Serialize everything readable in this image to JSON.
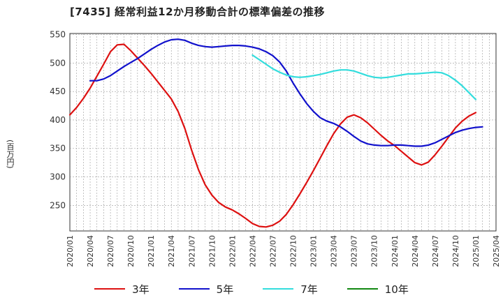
{
  "chart_data": {
    "type": "line",
    "title": "[7435]  経常利益12か月移動合計の標準偏差の推移",
    "ylabel": "(百万円)",
    "xlabel": "",
    "ylim": [
      205,
      552
    ],
    "yticks": [
      250,
      300,
      350,
      400,
      450,
      500,
      550
    ],
    "xtick_labels": [
      "2020/01",
      "2020/04",
      "2020/07",
      "2020/10",
      "2021/01",
      "2021/04",
      "2021/07",
      "2021/10",
      "2022/01",
      "2022/04",
      "2022/07",
      "2022/10",
      "2023/01",
      "2023/04",
      "2023/07",
      "2023/10",
      "2024/01",
      "2024/04",
      "2024/07",
      "2024/10",
      "2025/01",
      "2025/04"
    ],
    "grid": true,
    "legend_position": "bottom",
    "series": [
      {
        "name": "3年",
        "color": "#dd1111",
        "points": [
          [
            "2020/01",
            409
          ],
          [
            "2020/02",
            422
          ],
          [
            "2020/03",
            438
          ],
          [
            "2020/04",
            456
          ],
          [
            "2020/05",
            477
          ],
          [
            "2020/06",
            498
          ],
          [
            "2020/07",
            520
          ],
          [
            "2020/08",
            532
          ],
          [
            "2020/09",
            533
          ],
          [
            "2020/10",
            522
          ],
          [
            "2020/11",
            509
          ],
          [
            "2020/12",
            496
          ],
          [
            "2021/01",
            482
          ],
          [
            "2021/02",
            467
          ],
          [
            "2021/03",
            452
          ],
          [
            "2021/04",
            437
          ],
          [
            "2021/05",
            415
          ],
          [
            "2021/06",
            385
          ],
          [
            "2021/07",
            347
          ],
          [
            "2021/08",
            313
          ],
          [
            "2021/09",
            286
          ],
          [
            "2021/10",
            268
          ],
          [
            "2021/11",
            255
          ],
          [
            "2021/12",
            247
          ],
          [
            "2022/01",
            242
          ],
          [
            "2022/02",
            235
          ],
          [
            "2022/03",
            227
          ],
          [
            "2022/04",
            218
          ],
          [
            "2022/05",
            213
          ],
          [
            "2022/06",
            212
          ],
          [
            "2022/07",
            215
          ],
          [
            "2022/08",
            222
          ],
          [
            "2022/09",
            234
          ],
          [
            "2022/10",
            251
          ],
          [
            "2022/11",
            270
          ],
          [
            "2022/12",
            290
          ],
          [
            "2023/01",
            311
          ],
          [
            "2023/02",
            333
          ],
          [
            "2023/03",
            355
          ],
          [
            "2023/04",
            376
          ],
          [
            "2023/05",
            393
          ],
          [
            "2023/06",
            405
          ],
          [
            "2023/07",
            409
          ],
          [
            "2023/08",
            404
          ],
          [
            "2023/09",
            395
          ],
          [
            "2023/10",
            384
          ],
          [
            "2023/11",
            373
          ],
          [
            "2023/12",
            363
          ],
          [
            "2024/01",
            355
          ],
          [
            "2024/02",
            345
          ],
          [
            "2024/03",
            335
          ],
          [
            "2024/04",
            325
          ],
          [
            "2024/05",
            321
          ],
          [
            "2024/06",
            326
          ],
          [
            "2024/07",
            339
          ],
          [
            "2024/08",
            354
          ],
          [
            "2024/09",
            370
          ],
          [
            "2024/10",
            386
          ],
          [
            "2024/11",
            398
          ],
          [
            "2024/12",
            407
          ],
          [
            "2025/01",
            413
          ]
        ]
      },
      {
        "name": "5年",
        "color": "#1111cc",
        "points": [
          [
            "2020/04",
            469
          ],
          [
            "2020/05",
            469
          ],
          [
            "2020/06",
            472
          ],
          [
            "2020/07",
            478
          ],
          [
            "2020/08",
            486
          ],
          [
            "2020/09",
            494
          ],
          [
            "2020/10",
            501
          ],
          [
            "2020/11",
            508
          ],
          [
            "2020/12",
            516
          ],
          [
            "2021/01",
            524
          ],
          [
            "2021/02",
            531
          ],
          [
            "2021/03",
            537
          ],
          [
            "2021/04",
            541
          ],
          [
            "2021/05",
            542
          ],
          [
            "2021/06",
            540
          ],
          [
            "2021/07",
            535
          ],
          [
            "2021/08",
            531
          ],
          [
            "2021/09",
            529
          ],
          [
            "2021/10",
            528
          ],
          [
            "2021/11",
            529
          ],
          [
            "2021/12",
            530
          ],
          [
            "2022/01",
            531
          ],
          [
            "2022/02",
            531
          ],
          [
            "2022/03",
            530
          ],
          [
            "2022/04",
            528
          ],
          [
            "2022/05",
            525
          ],
          [
            "2022/06",
            520
          ],
          [
            "2022/07",
            513
          ],
          [
            "2022/08",
            502
          ],
          [
            "2022/09",
            486
          ],
          [
            "2022/10",
            465
          ],
          [
            "2022/11",
            446
          ],
          [
            "2022/12",
            429
          ],
          [
            "2023/01",
            415
          ],
          [
            "2023/02",
            404
          ],
          [
            "2023/03",
            398
          ],
          [
            "2023/04",
            394
          ],
          [
            "2023/05",
            388
          ],
          [
            "2023/06",
            380
          ],
          [
            "2023/07",
            371
          ],
          [
            "2023/08",
            363
          ],
          [
            "2023/09",
            358
          ],
          [
            "2023/10",
            356
          ],
          [
            "2023/11",
            355
          ],
          [
            "2023/12",
            355
          ],
          [
            "2024/01",
            356
          ],
          [
            "2024/02",
            356
          ],
          [
            "2024/03",
            355
          ],
          [
            "2024/04",
            354
          ],
          [
            "2024/05",
            354
          ],
          [
            "2024/06",
            356
          ],
          [
            "2024/07",
            360
          ],
          [
            "2024/08",
            366
          ],
          [
            "2024/09",
            372
          ],
          [
            "2024/10",
            378
          ],
          [
            "2024/11",
            382
          ],
          [
            "2024/12",
            385
          ],
          [
            "2025/01",
            387
          ],
          [
            "2025/02",
            388
          ]
        ]
      },
      {
        "name": "7年",
        "color": "#33dddd",
        "points": [
          [
            "2022/04",
            514
          ],
          [
            "2022/05",
            506
          ],
          [
            "2022/06",
            498
          ],
          [
            "2022/07",
            490
          ],
          [
            "2022/08",
            484
          ],
          [
            "2022/09",
            479
          ],
          [
            "2022/10",
            476
          ],
          [
            "2022/11",
            475
          ],
          [
            "2022/12",
            476
          ],
          [
            "2023/01",
            478
          ],
          [
            "2023/02",
            480
          ],
          [
            "2023/03",
            483
          ],
          [
            "2023/04",
            486
          ],
          [
            "2023/05",
            488
          ],
          [
            "2023/06",
            488
          ],
          [
            "2023/07",
            486
          ],
          [
            "2023/08",
            482
          ],
          [
            "2023/09",
            478
          ],
          [
            "2023/10",
            475
          ],
          [
            "2023/11",
            474
          ],
          [
            "2023/12",
            475
          ],
          [
            "2024/01",
            477
          ],
          [
            "2024/02",
            479
          ],
          [
            "2024/03",
            481
          ],
          [
            "2024/04",
            481
          ],
          [
            "2024/05",
            482
          ],
          [
            "2024/06",
            483
          ],
          [
            "2024/07",
            484
          ],
          [
            "2024/08",
            483
          ],
          [
            "2024/09",
            478
          ],
          [
            "2024/10",
            470
          ],
          [
            "2024/11",
            460
          ],
          [
            "2024/12",
            448
          ],
          [
            "2025/01",
            436
          ]
        ]
      },
      {
        "name": "10年",
        "color": "#118811",
        "points": []
      }
    ]
  }
}
